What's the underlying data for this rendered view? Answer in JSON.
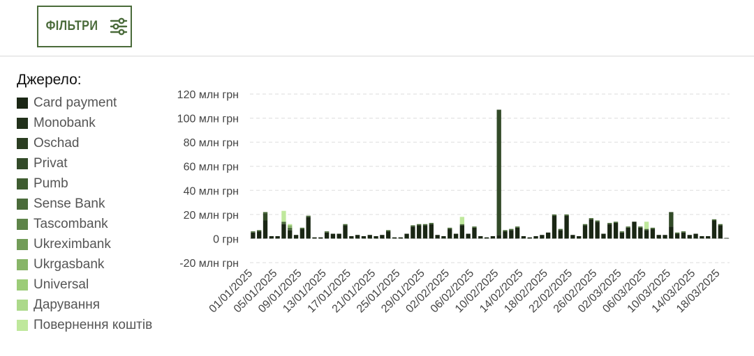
{
  "filters": {
    "button_label": "ФІЛЬТРИ",
    "icon": "sliders-icon",
    "color": "#4a6b3a"
  },
  "legend": {
    "title": "Джерело:",
    "items": [
      {
        "label": "Card payment",
        "color": "#1a2614"
      },
      {
        "label": "Monobank",
        "color": "#21301a"
      },
      {
        "label": "Oschad",
        "color": "#2a3d21"
      },
      {
        "label": "Privat",
        "color": "#324a28"
      },
      {
        "label": "Pumb",
        "color": "#3e5c30"
      },
      {
        "label": "Sense Bank",
        "color": "#4a6b3a"
      },
      {
        "label": "Tascombank",
        "color": "#5e8449"
      },
      {
        "label": "Ukreximbank",
        "color": "#729c58"
      },
      {
        "label": "Ukrgasbank",
        "color": "#88b568"
      },
      {
        "label": "Universal",
        "color": "#9ccc78"
      },
      {
        "label": "Дарування",
        "color": "#acd98a"
      },
      {
        "label": "Повернення коштів",
        "color": "#bfe89c"
      }
    ]
  },
  "chart_data": {
    "type": "bar",
    "stacked": true,
    "title": "",
    "xlabel": "",
    "ylabel": "",
    "ylim": [
      -20,
      120
    ],
    "y_ticks": [
      "-20 млн грн",
      "0 грн",
      "20 млн грн",
      "40 млн грн",
      "60 млн грн",
      "80 млн грн",
      "100 млн грн",
      "120 млн грн"
    ],
    "y_tick_values": [
      -20,
      0,
      20,
      40,
      60,
      80,
      100,
      120
    ],
    "grid": "horizontal dashed",
    "x_tick_labels": [
      "01/01/2025",
      "05/01/2025",
      "09/01/2025",
      "13/01/2025",
      "17/01/2025",
      "21/01/2025",
      "25/01/2025",
      "29/01/2025",
      "02/02/2025",
      "06/02/2025",
      "10/02/2025",
      "14/02/2025",
      "18/02/2025",
      "22/02/2025",
      "26/02/2025",
      "02/03/2025",
      "06/03/2025",
      "10/03/2025",
      "14/03/2025",
      "18/03/2025"
    ],
    "series": [
      {
        "name": "Card payment",
        "color": "#1a2614",
        "values": [
          5,
          6,
          15,
          2,
          2,
          12,
          7,
          3,
          8,
          18,
          1,
          1,
          5,
          4,
          4,
          11,
          2,
          3,
          2,
          3,
          2,
          3,
          6,
          1,
          1,
          4,
          10,
          11,
          11,
          12,
          3,
          2,
          8,
          4,
          11,
          4,
          9,
          2,
          1,
          2,
          3,
          6,
          7,
          9,
          2,
          1,
          2,
          3,
          5,
          19,
          7,
          19,
          3,
          2,
          11,
          16,
          14,
          4,
          12,
          13,
          5,
          9,
          14,
          9,
          7,
          8,
          3,
          3,
          10,
          4,
          5,
          3,
          4,
          2,
          2,
          15,
          11,
          0.5
        ]
      },
      {
        "name": "Privat",
        "color": "#324a28",
        "values": [
          0,
          0,
          6,
          0,
          0,
          0,
          0,
          0,
          0,
          0,
          0,
          0,
          0,
          0,
          0,
          0,
          0,
          0,
          0,
          0,
          0,
          0,
          0,
          0,
          0,
          0,
          0,
          0,
          0,
          0,
          0,
          0,
          0,
          0,
          0,
          0,
          0,
          0,
          0,
          0,
          104,
          0,
          0,
          0,
          0,
          0,
          0,
          0,
          0,
          0,
          0,
          0,
          0,
          0,
          0,
          0,
          0,
          0,
          0,
          0,
          0,
          0,
          0,
          0,
          0,
          0,
          0,
          0,
          12,
          0,
          0,
          0,
          0,
          0,
          0,
          0,
          0,
          0
        ]
      },
      {
        "name": "Sense Bank",
        "color": "#4a6b3a",
        "values": [
          1,
          1,
          1,
          0,
          0,
          2,
          2,
          0,
          1,
          1,
          0,
          0,
          1,
          0,
          0,
          1,
          0,
          0,
          0,
          0,
          0,
          0,
          1,
          0,
          0,
          0,
          1,
          1,
          1,
          1,
          0,
          0,
          1,
          0,
          1,
          0,
          1,
          0,
          0,
          0,
          0,
          1,
          1,
          1,
          0,
          0,
          0,
          0,
          0,
          1,
          1,
          1,
          0,
          0,
          1,
          1,
          1,
          0,
          1,
          1,
          1,
          1,
          0,
          1,
          1,
          1,
          0,
          0,
          0,
          1,
          1,
          0,
          0,
          0,
          0,
          1,
          1,
          0
        ]
      },
      {
        "name": "Ukrgasbank",
        "color": "#88b568",
        "values": [
          0,
          0,
          0,
          0,
          0,
          0,
          2,
          0,
          0,
          0,
          0,
          0,
          0,
          0,
          0,
          0,
          0,
          0,
          0,
          0,
          0,
          0,
          0,
          0,
          0,
          0,
          0,
          0,
          0,
          0,
          0,
          0,
          0,
          0,
          0,
          0,
          0,
          0,
          0,
          0,
          0,
          0,
          0,
          0,
          0,
          0,
          0,
          0,
          0,
          0,
          0,
          0,
          0,
          0,
          0,
          0,
          0,
          0,
          0,
          0,
          0,
          0,
          0,
          0,
          0,
          0,
          0,
          0,
          0,
          0,
          0,
          0,
          0,
          0,
          0,
          0,
          0,
          0
        ]
      },
      {
        "name": "Повернення коштів",
        "color": "#bfe89c",
        "values": [
          0,
          0,
          0,
          0,
          0,
          9,
          1,
          0,
          0,
          0,
          0,
          0,
          0,
          0,
          0,
          0,
          0,
          0,
          0,
          0,
          0,
          0,
          0,
          0,
          0,
          0,
          0,
          0,
          0,
          0,
          0,
          0,
          0,
          0,
          6,
          0,
          0,
          0,
          0,
          0,
          0,
          0,
          0,
          0,
          0,
          0,
          0,
          0,
          0,
          0,
          0,
          0,
          0,
          0,
          0,
          0,
          0,
          0,
          0,
          0,
          0,
          0,
          0,
          0,
          6,
          0,
          0,
          0,
          0,
          0,
          0,
          0,
          0,
          0,
          0,
          0,
          0,
          0
        ]
      }
    ]
  }
}
